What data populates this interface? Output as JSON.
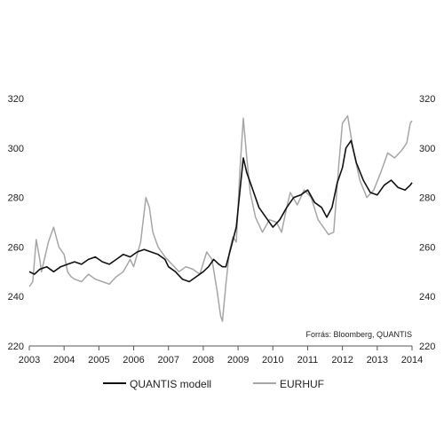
{
  "chart_data": {
    "type": "line",
    "title": "",
    "xlabel": "",
    "ylabel": "",
    "xlim": [
      2003,
      2014
    ],
    "ylim": [
      220,
      320
    ],
    "yticks": [
      220,
      240,
      260,
      280,
      300,
      320
    ],
    "xticks": [
      2003,
      2004,
      2005,
      2006,
      2007,
      2008,
      2009,
      2010,
      2011,
      2012,
      2013,
      2014
    ],
    "grid": false,
    "source_note": "Forrás: Bloomberg, QUANTIS",
    "legend_position": "bottom",
    "colors": {
      "QUANTIS modell": "#111111",
      "EURHUF": "#a6a6a6"
    },
    "series": [
      {
        "name": "EURHUF",
        "x": [
          2003.0,
          2003.1,
          2003.2,
          2003.3,
          2003.35,
          2003.45,
          2003.55,
          2003.7,
          2003.85,
          2004.0,
          2004.1,
          2004.2,
          2004.3,
          2004.5,
          2004.7,
          2004.9,
          2005.1,
          2005.3,
          2005.5,
          2005.7,
          2005.9,
          2006.0,
          2006.2,
          2006.35,
          2006.45,
          2006.55,
          2006.7,
          2006.9,
          2007.1,
          2007.3,
          2007.5,
          2007.7,
          2007.9,
          2008.1,
          2008.25,
          2008.4,
          2008.5,
          2008.55,
          2008.65,
          2008.75,
          2008.85,
          2008.95,
          2009.05,
          2009.15,
          2009.25,
          2009.35,
          2009.5,
          2009.7,
          2009.9,
          2010.1,
          2010.25,
          2010.4,
          2010.5,
          2010.7,
          2010.9,
          2011.1,
          2011.3,
          2011.45,
          2011.6,
          2011.75,
          2011.9,
          2012.0,
          2012.15,
          2012.3,
          2012.5,
          2012.7,
          2012.9,
          2013.1,
          2013.3,
          2013.5,
          2013.7,
          2013.85,
          2013.95,
          2014.0
        ],
        "values": [
          244,
          246,
          263,
          255,
          250,
          256,
          262,
          268,
          260,
          257,
          250,
          248,
          247,
          246,
          249,
          247,
          246,
          245,
          248,
          250,
          255,
          252,
          262,
          280,
          276,
          266,
          260,
          256,
          253,
          250,
          252,
          251,
          249,
          258,
          255,
          242,
          232,
          230,
          245,
          258,
          264,
          262,
          290,
          312,
          296,
          282,
          272,
          266,
          271,
          270,
          266,
          276,
          282,
          277,
          283,
          280,
          271,
          268,
          265,
          266,
          294,
          310,
          313,
          300,
          287,
          280,
          283,
          290,
          298,
          296,
          299,
          302,
          310,
          311
        ]
      },
      {
        "name": "QUANTIS modell",
        "x": [
          2003.0,
          2003.15,
          2003.3,
          2003.5,
          2003.7,
          2003.9,
          2004.1,
          2004.3,
          2004.5,
          2004.7,
          2004.9,
          2005.1,
          2005.3,
          2005.5,
          2005.7,
          2005.9,
          2006.1,
          2006.3,
          2006.5,
          2006.7,
          2006.9,
          2007.0,
          2007.2,
          2007.4,
          2007.6,
          2007.8,
          2008.0,
          2008.15,
          2008.3,
          2008.45,
          2008.55,
          2008.65,
          2008.8,
          2008.95,
          2009.05,
          2009.15,
          2009.25,
          2009.4,
          2009.6,
          2009.8,
          2010.0,
          2010.2,
          2010.4,
          2010.6,
          2010.8,
          2011.0,
          2011.2,
          2011.4,
          2011.55,
          2011.7,
          2011.85,
          2012.0,
          2012.1,
          2012.25,
          2012.4,
          2012.6,
          2012.8,
          2013.0,
          2013.2,
          2013.4,
          2013.6,
          2013.8,
          2013.95,
          2014.0
        ],
        "values": [
          250,
          249,
          251,
          252,
          250,
          252,
          253,
          254,
          253,
          255,
          256,
          254,
          253,
          255,
          257,
          256,
          258,
          259,
          258,
          257,
          255,
          252,
          250,
          247,
          246,
          248,
          250,
          252,
          255,
          253,
          252,
          252,
          260,
          268,
          282,
          296,
          290,
          284,
          276,
          272,
          268,
          271,
          276,
          280,
          281,
          283,
          278,
          276,
          272,
          276,
          286,
          292,
          300,
          303,
          294,
          287,
          282,
          281,
          285,
          287,
          284,
          283,
          285,
          286
        ]
      }
    ]
  }
}
